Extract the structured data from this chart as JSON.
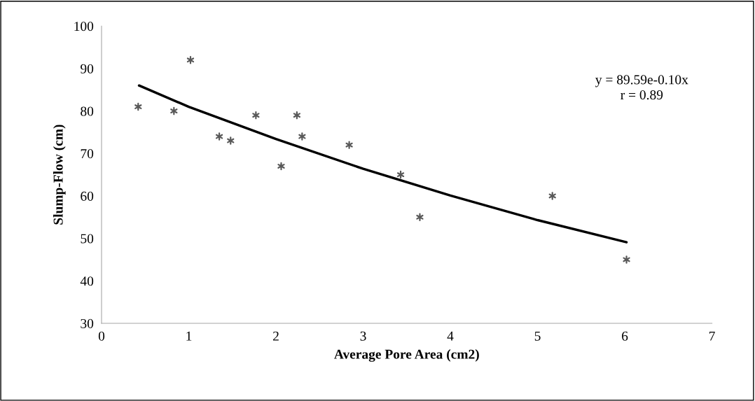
{
  "chart_data": {
    "type": "scatter",
    "xlabel": "Average Pore Area (cm2)",
    "ylabel": "Slump-Flow (cm)",
    "xlim": [
      0,
      7
    ],
    "xticks": [
      0,
      1,
      2,
      3,
      4,
      5,
      6,
      7
    ],
    "ylim": [
      30,
      100
    ],
    "yticks": [
      30,
      40,
      50,
      60,
      70,
      80,
      90,
      100
    ],
    "grid": false,
    "legend": false,
    "marker": "cross",
    "annotations": [
      "y = 89.59e-0.10x\nr = 0.89"
    ],
    "series": [
      {
        "color": "#595959",
        "x": [
          0.42,
          0.83,
          1.02,
          1.35,
          1.48,
          1.77,
          2.06,
          2.24,
          2.3,
          2.84,
          3.43,
          3.65,
          5.17,
          6.02
        ],
        "values": [
          81,
          80,
          92,
          74,
          73,
          79,
          67,
          79,
          74,
          72,
          65,
          55,
          60,
          45
        ]
      },
      {
        "type": "line",
        "color": "#000000",
        "marker": "none",
        "line_style": "solid",
        "x": [
          0.43,
          1,
          2,
          3,
          4,
          5,
          6.02
        ],
        "values": [
          86,
          81,
          73.4,
          66.4,
          60.1,
          54.3,
          49.1
        ]
      }
    ]
  }
}
